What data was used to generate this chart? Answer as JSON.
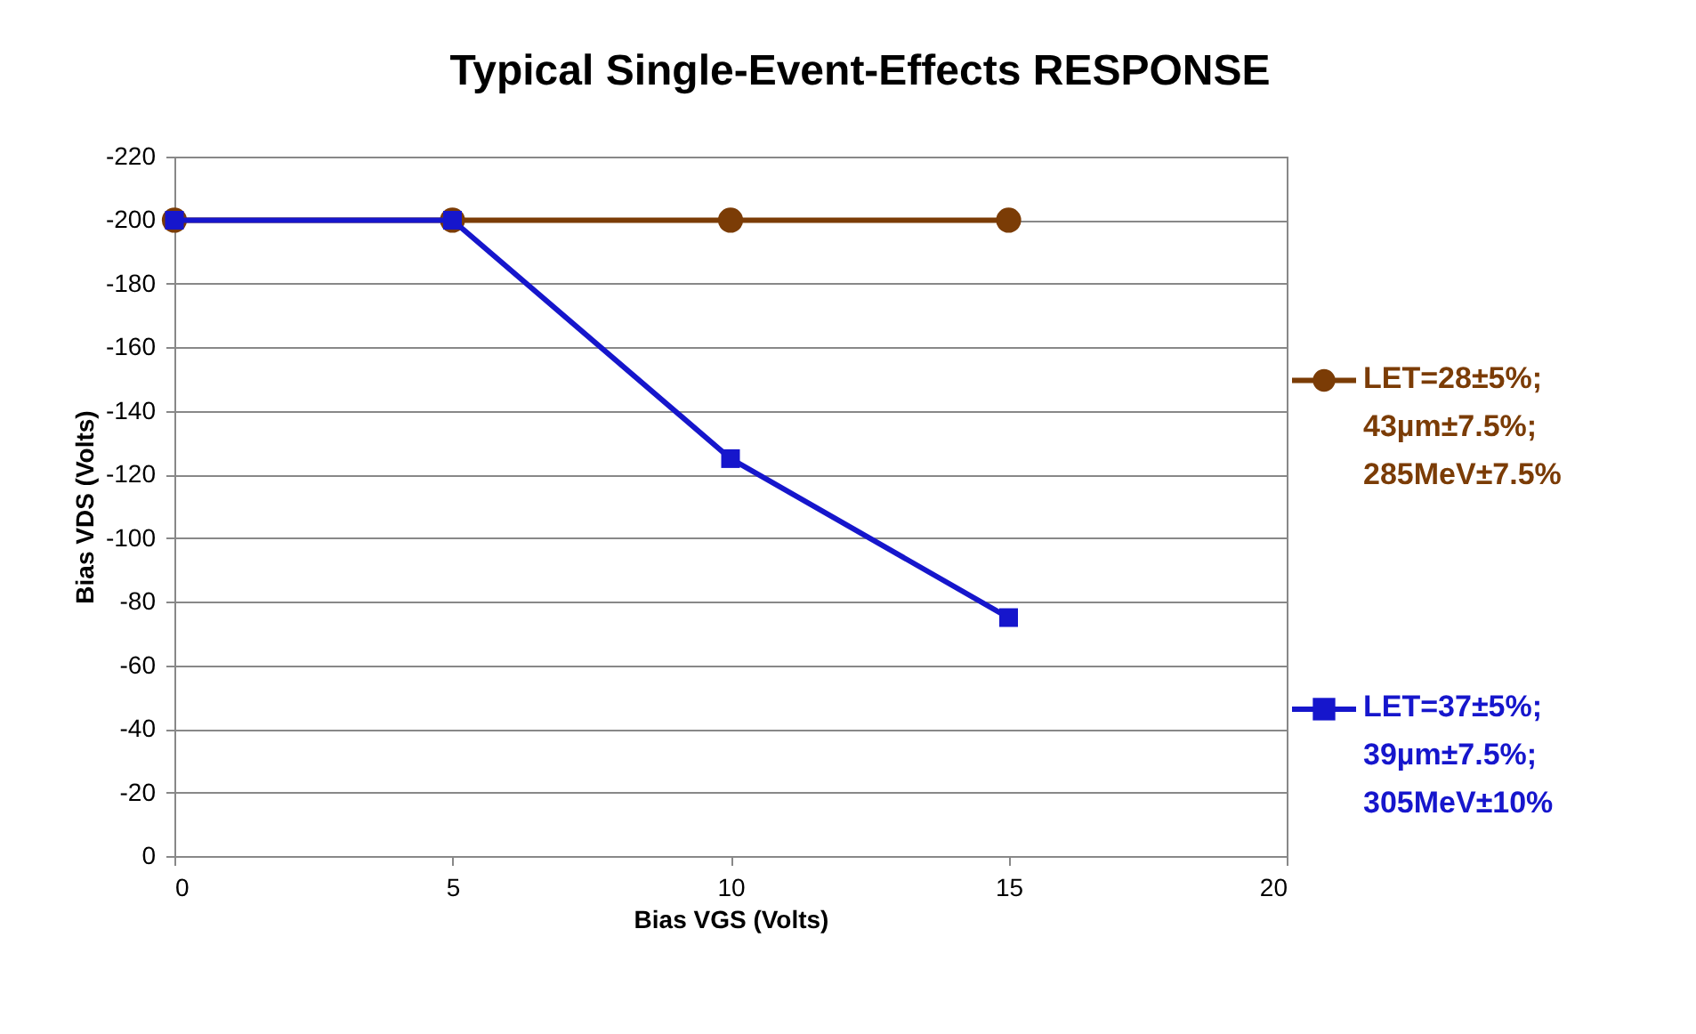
{
  "chart_data": {
    "type": "line",
    "title": "Typical Single-Event-Effects RESPONSE",
    "xlabel": "Bias VGS (Volts)",
    "ylabel": "Bias VDS (Volts)",
    "x": [
      0,
      5,
      10,
      15
    ],
    "series": [
      {
        "name": "LET=28±5%; 43µm±7.5%; 285MeV±7.5%",
        "color": "#7b3c06",
        "marker": "circle",
        "values": [
          -200,
          -200,
          -200,
          -200
        ]
      },
      {
        "name": "LET=37±5%; 39µm±7.5%; 305MeV±10%",
        "color": "#1616cc",
        "marker": "square",
        "values": [
          -200,
          -200,
          -125,
          -75
        ]
      }
    ],
    "xlim": [
      0,
      20
    ],
    "xticks": [
      0,
      5,
      10,
      15,
      20
    ],
    "ylim": [
      0,
      -220
    ],
    "yticks": [
      0,
      -20,
      -40,
      -60,
      -80,
      -100,
      -120,
      -140,
      -160,
      -180,
      -200,
      -220
    ],
    "grid": "y",
    "legend": "right",
    "line_style": "solid"
  }
}
